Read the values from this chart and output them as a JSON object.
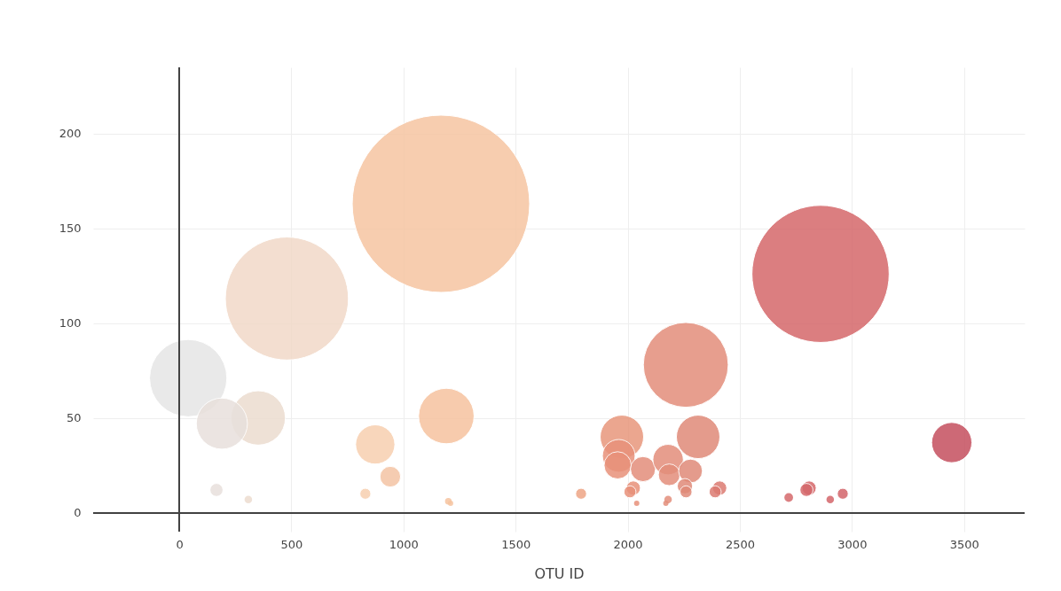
{
  "chart_data": {
    "type": "bubble",
    "xlabel": "OTU ID",
    "x": [
      1167,
      2860,
      480,
      2259,
      40,
      1191,
      352,
      190,
      1974,
      2314,
      874,
      1960,
      1955,
      3445,
      2068,
      2180,
      2185,
      2280,
      941,
      2255,
      2025,
      2410,
      2809,
      2260,
      2010,
      2390,
      2797,
      166,
      830,
      1792,
      2959,
      2718,
      308,
      2180,
      2903,
      1200,
      1210,
      2170,
      2040
    ],
    "values": [
      163,
      126,
      113,
      78,
      71,
      51,
      50,
      47,
      40,
      40,
      36,
      30,
      25,
      37,
      23,
      28,
      20,
      22,
      19,
      14,
      13,
      13,
      13,
      11,
      11,
      11,
      12,
      12,
      10,
      10,
      10,
      8,
      7,
      7,
      7,
      6,
      5,
      5,
      5
    ],
    "sizes": [
      1,
      0.598,
      0.481,
      0.229,
      0.19,
      0.098,
      0.094,
      0.083,
      0.06,
      0.06,
      0.049,
      0.034,
      0.0235,
      0.0515,
      0.02,
      0.0295,
      0.015,
      0.018,
      0.0136,
      0.0074,
      0.0064,
      0.0064,
      0.0064,
      0.0046,
      0.0046,
      0.0046,
      0.0054,
      0.0054,
      0.0038,
      0.0038,
      0.0038,
      0.0024,
      0.0018,
      0.0018,
      0.0018,
      0.0014,
      0.0009,
      0.0009,
      0.0009
    ],
    "colors": [
      "#f6c5a2",
      "#d5686b",
      "#f1d9c8",
      "#e38e7b",
      "#e6e6e6",
      "#f6c39f",
      "#ecdccf",
      "#e8e0dc",
      "#e8977c",
      "#e08a78",
      "#f7cfb0",
      "#e8917a",
      "#e8917a",
      "#c5505f",
      "#e38e7b",
      "#e38e7b",
      "#e38e7b",
      "#e08a78",
      "#f4c4a4",
      "#e08a78",
      "#e8917a",
      "#dc7b72",
      "#d5686b",
      "#e08a78",
      "#e8917a",
      "#dc7b72",
      "#d5686b",
      "#e8e0dc",
      "#f7cfb0",
      "#eea585",
      "#d3656a",
      "#d5686b",
      "#ecdccf",
      "#e38e7b",
      "#d3656a",
      "#f6c39f",
      "#f6c39f",
      "#e38e7b",
      "#e8917a"
    ],
    "xlim": [
      -384,
      3770
    ],
    "ylim": [
      -10,
      235
    ],
    "xticks": [
      0,
      500,
      1000,
      1500,
      2000,
      2500,
      3000,
      3500
    ],
    "yticks": [
      0,
      50,
      100,
      150,
      200
    ],
    "grid": true
  }
}
